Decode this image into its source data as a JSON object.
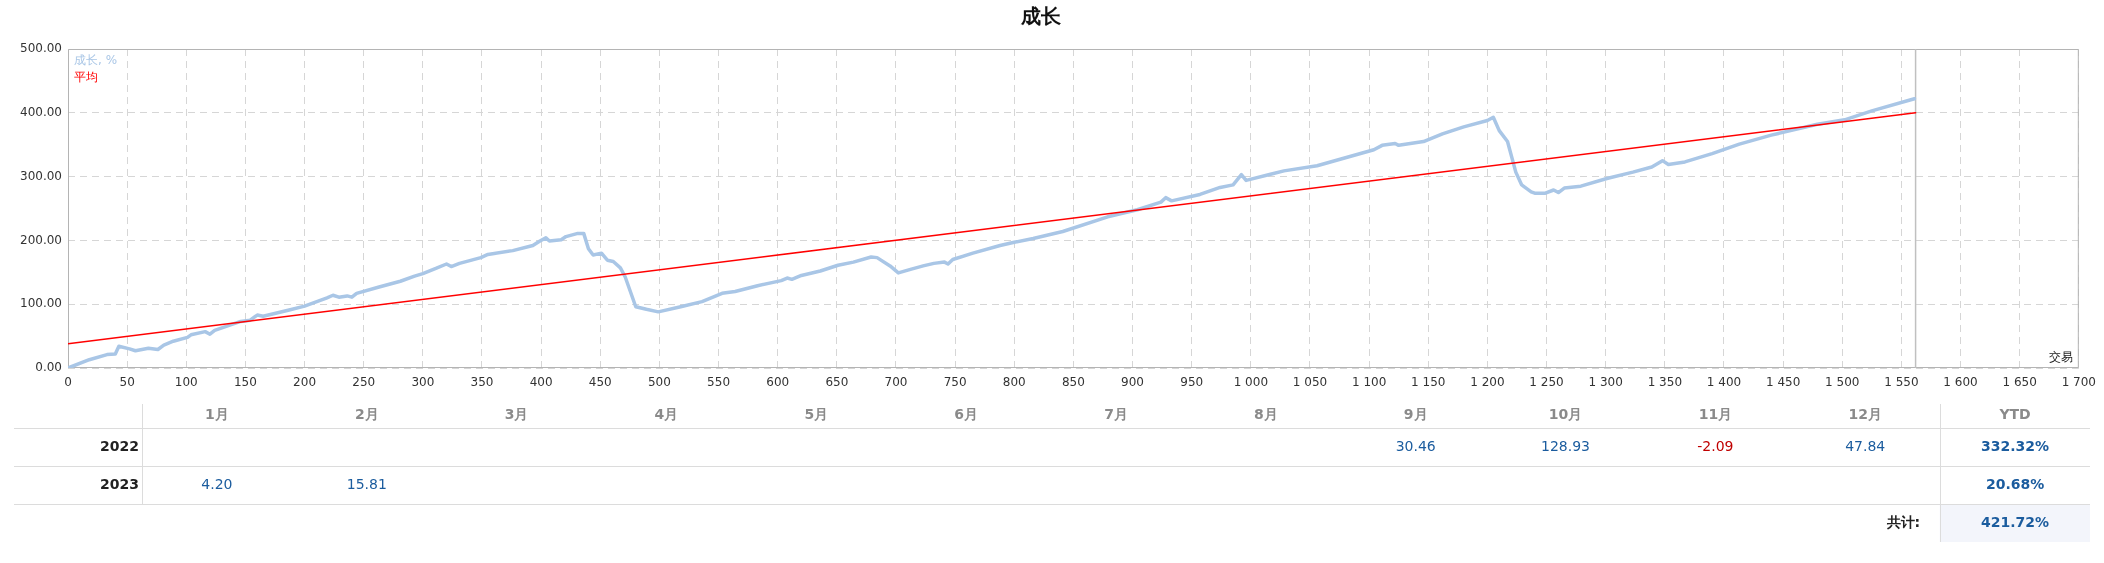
{
  "chart_data": [
    {
      "type": "line",
      "title": "成长",
      "xlabel": "交易",
      "series": [
        {
          "name": "成长, %",
          "color": "#a9c6e6",
          "x": [
            0,
            18,
            33,
            40,
            43,
            52,
            57,
            68,
            76,
            81,
            89,
            101,
            104,
            116,
            120,
            124,
            135,
            146,
            154,
            160,
            165,
            187,
            200,
            219,
            224,
            229,
            236,
            240,
            244,
            263,
            281,
            293,
            300,
            311,
            320,
            324,
            331,
            349,
            355,
            376,
            393,
            399,
            404,
            407,
            417,
            421,
            431,
            436,
            440,
            444,
            451,
            456,
            461,
            467,
            471,
            480,
            489,
            499,
            518,
            536,
            553,
            564,
            583,
            603,
            608,
            612,
            620,
            636,
            651,
            664,
            679,
            684,
            695,
            702,
            713,
            723,
            732,
            741,
            744,
            748,
            765,
            788,
            800,
            816,
            841,
            879,
            904,
            924,
            928,
            933,
            957,
            974,
            985,
            992,
            996,
            1028,
            1056,
            1104,
            1111,
            1122,
            1125,
            1146,
            1162,
            1180,
            1200,
            1205,
            1210,
            1217,
            1224,
            1229,
            1237,
            1240,
            1249,
            1256,
            1260,
            1265,
            1279,
            1301,
            1323,
            1339,
            1348,
            1353,
            1367,
            1390,
            1413,
            1440,
            1479,
            1502,
            1525,
            1561
          ],
          "values": [
            0,
            13,
            21,
            22,
            34,
            30,
            27,
            31,
            29,
            36,
            42,
            48,
            52,
            57,
            53,
            59,
            66,
            73,
            75,
            83,
            81,
            91,
            97,
            110,
            114,
            111,
            113,
            111,
            117,
            127,
            136,
            144,
            148,
            156,
            163,
            159,
            164,
            173,
            178,
            184,
            192,
            199,
            204,
            199,
            201,
            206,
            211,
            211,
            187,
            177,
            180,
            169,
            167,
            157,
            143,
            96,
            92,
            88,
            96,
            104,
            117,
            120,
            129,
            137,
            141,
            139,
            145,
            152,
            161,
            166,
            174,
            173,
            160,
            149,
            155,
            160,
            164,
            166,
            163,
            170,
            180,
            192,
            197,
            203,
            214,
            237,
            248,
            260,
            267,
            262,
            272,
            283,
            287,
            303,
            294,
            309,
            317,
            342,
            349,
            352,
            349,
            355,
            367,
            378,
            388,
            393,
            372,
            355,
            307,
            287,
            276,
            274,
            274,
            279,
            275,
            282,
            285,
            297,
            307,
            315,
            325,
            319,
            323,
            336,
            351,
            365,
            382,
            389,
            403,
            422
          ]
        },
        {
          "name": "平均",
          "type": "line",
          "color": "#ff0000",
          "x": [
            0,
            1562
          ],
          "values": [
            38,
            400
          ]
        }
      ],
      "xlim": [
        0,
        1700
      ],
      "xticks": [
        0,
        50,
        100,
        150,
        200,
        250,
        300,
        350,
        400,
        450,
        500,
        550,
        600,
        650,
        700,
        750,
        800,
        850,
        900,
        950,
        {
          "value": 1000,
          "label": "1 000"
        },
        {
          "value": 1050,
          "label": "1 050"
        },
        {
          "value": 1100,
          "label": "1 100"
        },
        {
          "value": 1150,
          "label": "1 150"
        },
        {
          "value": 1200,
          "label": "1 200"
        },
        {
          "value": 1250,
          "label": "1 250"
        },
        {
          "value": 1300,
          "label": "1 300"
        },
        {
          "value": 1350,
          "label": "1 350"
        },
        {
          "value": 1400,
          "label": "1 400"
        },
        {
          "value": 1450,
          "label": "1 450"
        },
        {
          "value": 1500,
          "label": "1 500"
        },
        {
          "value": 1550,
          "label": "1 550"
        },
        {
          "value": 1600,
          "label": "1 600"
        },
        {
          "value": 1650,
          "label": "1 650"
        },
        {
          "value": 1700,
          "label": "1 700"
        }
      ],
      "ylim": [
        0,
        500
      ],
      "yticks": [
        {
          "value": 0,
          "label": "0.00"
        },
        {
          "value": 100,
          "label": "100.00"
        },
        {
          "value": 200,
          "label": "200.00"
        },
        {
          "value": 300,
          "label": "300.00"
        },
        {
          "value": 400,
          "label": "400.00"
        },
        {
          "value": 500,
          "label": "500.00"
        }
      ],
      "grid": true,
      "legend": "top left",
      "marker": "none",
      "ref_lines": [
        {
          "axis": "x",
          "value": 1562,
          "color": "#c0c0c0"
        }
      ]
    },
    {
      "type": "heatmap",
      "categories": [
        "1月",
        "2月",
        "3月",
        "4月",
        "5月",
        "6月",
        "7月",
        "8月",
        "9月",
        "10月",
        "11月",
        "12月",
        "YTD"
      ],
      "y_categories": [
        "2022",
        "2023",
        null
      ],
      "cells": [
        [
          null,
          null,
          null,
          null,
          null,
          null,
          null,
          null,
          30.46,
          128.93,
          -2.09,
          47.84,
          332.32
        ],
        [
          4.2,
          15.81,
          null,
          null,
          null,
          null,
          null,
          null,
          null,
          null,
          null,
          null,
          20.68
        ],
        [
          null,
          null,
          null,
          null,
          null,
          null,
          null,
          null,
          null,
          null,
          null,
          null,
          421.72
        ]
      ],
      "cell_labels": [
        [
          null,
          null,
          null,
          null,
          null,
          null,
          null,
          null,
          "30.46",
          "128.93",
          "-2.09",
          "47.84",
          "332.32%"
        ],
        [
          "4.20",
          "15.81",
          null,
          null,
          null,
          null,
          null,
          null,
          null,
          null,
          null,
          null,
          "20.68%"
        ],
        [
          null,
          null,
          null,
          null,
          null,
          null,
          null,
          null,
          null,
          null,
          null,
          null,
          "421.72%"
        ]
      ],
      "annotations": [
        "共计:"
      ]
    }
  ]
}
